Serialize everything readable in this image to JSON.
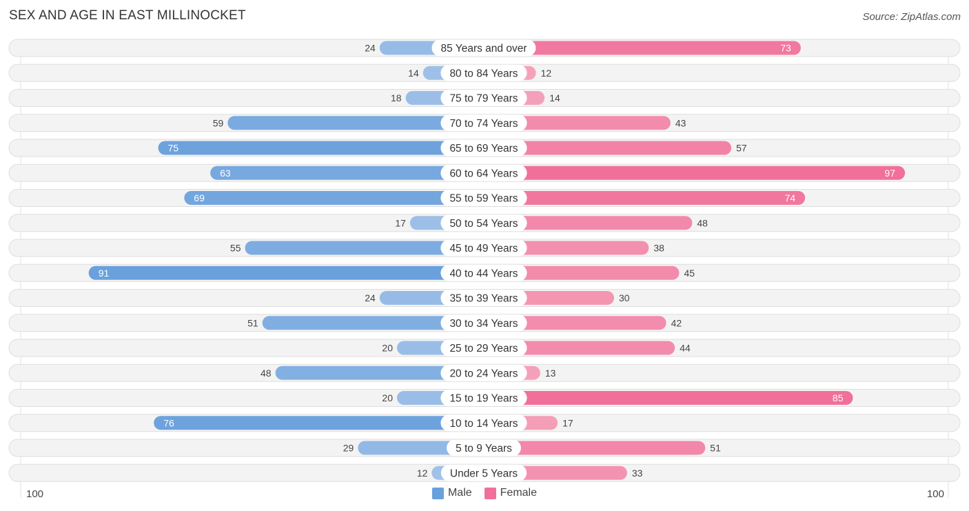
{
  "header": {
    "title": "SEX AND AGE IN EAST MILLINOCKET",
    "source": "Source: ZipAtlas.com"
  },
  "colors": {
    "male": "#6aa0dc",
    "male_light": "#a9c7ea",
    "female": "#f07099",
    "female_light": "#f6a9c0",
    "row_bg": "#f1f1f1"
  },
  "chart_data": {
    "type": "bar",
    "title": "SEX AND AGE IN EAST MILLINOCKET",
    "orientation": "horizontal-diverging",
    "categories": [
      "85 Years and over",
      "80 to 84 Years",
      "75 to 79 Years",
      "70 to 74 Years",
      "65 to 69 Years",
      "60 to 64 Years",
      "55 to 59 Years",
      "50 to 54 Years",
      "45 to 49 Years",
      "40 to 44 Years",
      "35 to 39 Years",
      "30 to 34 Years",
      "25 to 29 Years",
      "20 to 24 Years",
      "15 to 19 Years",
      "10 to 14 Years",
      "5 to 9 Years",
      "Under 5 Years"
    ],
    "series": [
      {
        "name": "Male",
        "values": [
          24,
          14,
          18,
          59,
          75,
          63,
          69,
          17,
          55,
          91,
          24,
          51,
          20,
          48,
          20,
          76,
          29,
          12
        ]
      },
      {
        "name": "Female",
        "values": [
          73,
          12,
          14,
          43,
          57,
          97,
          74,
          48,
          38,
          45,
          30,
          42,
          44,
          13,
          85,
          17,
          51,
          33
        ]
      }
    ],
    "axis": {
      "left_label": "100",
      "right_label": "100",
      "max": 100
    },
    "legend": [
      "Male",
      "Female"
    ],
    "legend_position": "bottom-center"
  }
}
